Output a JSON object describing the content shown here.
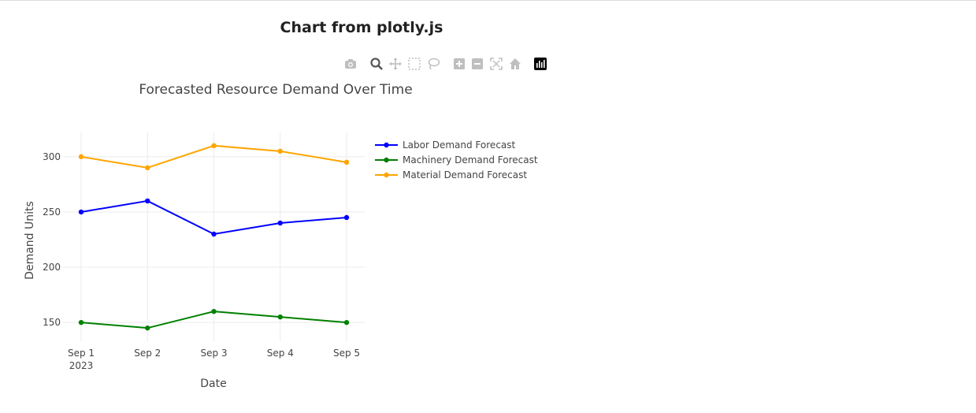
{
  "page": {
    "title": "Chart from plotly.js"
  },
  "modebar": {
    "buttons": [
      "camera-icon",
      "zoom-icon",
      "pan-icon",
      "box-select-icon",
      "lasso-select-icon",
      "zoom-in-icon",
      "zoom-out-icon",
      "autoscale-icon",
      "reset-axes-icon",
      "plotly-logo-icon"
    ]
  },
  "chart_data": {
    "type": "line",
    "title": "Forecasted Resource Demand Over Time",
    "xlabel": "Date",
    "ylabel": "Demand Units",
    "categories": [
      "Sep 1",
      "Sep 2",
      "Sep 3",
      "Sep 4",
      "Sep 5"
    ],
    "x_tick_year": "2023",
    "ylim": [
      133,
      322
    ],
    "yticks": [
      150,
      200,
      250,
      300
    ],
    "grid": true,
    "legend_position": "right",
    "series": [
      {
        "name": "Labor Demand Forecast",
        "color": "#0000ff",
        "values": [
          250,
          260,
          230,
          240,
          245
        ]
      },
      {
        "name": "Machinery Demand Forecast",
        "color": "#008000",
        "values": [
          150,
          145,
          160,
          155,
          150
        ]
      },
      {
        "name": "Material Demand Forecast",
        "color": "#ffa500",
        "values": [
          300,
          290,
          310,
          305,
          295
        ]
      }
    ]
  }
}
